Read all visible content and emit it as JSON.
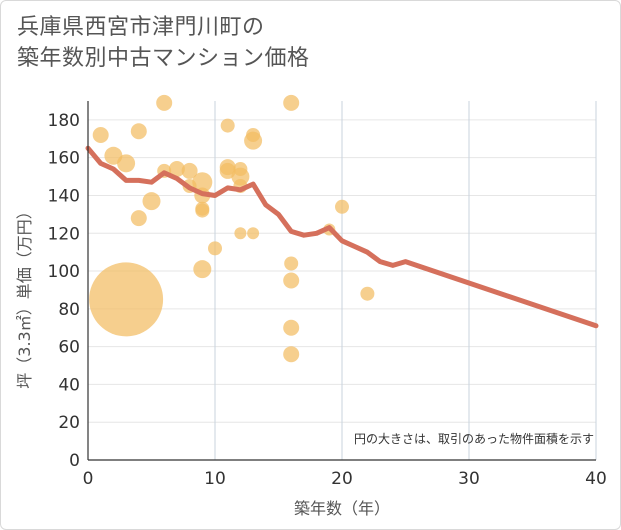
{
  "chart_data": {
    "type": "scatter",
    "title_line1": "兵庫県西宮市津門川町の",
    "title_line2": "築年数別中古マンション価格",
    "xlabel": "築年数（年）",
    "ylabel": "坪（3.3㎡）単価（万円）",
    "note": "円の大きさは、取引のあった物件面積を示す",
    "xlim": [
      0,
      40
    ],
    "ylim": [
      0,
      190
    ],
    "x_ticks": [
      0,
      10,
      20,
      30,
      40
    ],
    "y_ticks": [
      0,
      20,
      40,
      60,
      80,
      100,
      120,
      140,
      160,
      180
    ],
    "grid": true,
    "colors": {
      "bubble": "#f3bd62",
      "line": "#d5705c",
      "grid": "#e6e6e6",
      "vgrid": "#c9d3de"
    },
    "bubbles": [
      {
        "x": 1,
        "y": 172,
        "r": 8
      },
      {
        "x": 2,
        "y": 161,
        "r": 9
      },
      {
        "x": 3,
        "y": 157,
        "r": 9
      },
      {
        "x": 3,
        "y": 85,
        "r": 37
      },
      {
        "x": 4,
        "y": 174,
        "r": 8
      },
      {
        "x": 4,
        "y": 128,
        "r": 8
      },
      {
        "x": 5,
        "y": 137,
        "r": 9
      },
      {
        "x": 6,
        "y": 189,
        "r": 8
      },
      {
        "x": 6,
        "y": 153,
        "r": 7
      },
      {
        "x": 7,
        "y": 154,
        "r": 8
      },
      {
        "x": 8,
        "y": 153,
        "r": 8
      },
      {
        "x": 8,
        "y": 145,
        "r": 7
      },
      {
        "x": 9,
        "y": 147,
        "r": 10
      },
      {
        "x": 9,
        "y": 140,
        "r": 8
      },
      {
        "x": 9,
        "y": 133,
        "r": 7
      },
      {
        "x": 9,
        "y": 132,
        "r": 7
      },
      {
        "x": 9,
        "y": 101,
        "r": 9
      },
      {
        "x": 10,
        "y": 112,
        "r": 7
      },
      {
        "x": 11,
        "y": 177,
        "r": 7
      },
      {
        "x": 11,
        "y": 155,
        "r": 8
      },
      {
        "x": 11,
        "y": 153,
        "r": 8
      },
      {
        "x": 12,
        "y": 154,
        "r": 7
      },
      {
        "x": 12,
        "y": 150,
        "r": 9
      },
      {
        "x": 12,
        "y": 145,
        "r": 7
      },
      {
        "x": 12,
        "y": 120,
        "r": 6
      },
      {
        "x": 13,
        "y": 172,
        "r": 7
      },
      {
        "x": 13,
        "y": 169,
        "r": 9
      },
      {
        "x": 13,
        "y": 120,
        "r": 6
      },
      {
        "x": 16,
        "y": 189,
        "r": 8
      },
      {
        "x": 16,
        "y": 104,
        "r": 7
      },
      {
        "x": 16,
        "y": 95,
        "r": 8
      },
      {
        "x": 16,
        "y": 70,
        "r": 8
      },
      {
        "x": 16,
        "y": 56,
        "r": 8
      },
      {
        "x": 19,
        "y": 122,
        "r": 6
      },
      {
        "x": 20,
        "y": 134,
        "r": 7
      },
      {
        "x": 22,
        "y": 88,
        "r": 7
      }
    ],
    "trend": [
      {
        "x": 0,
        "y": 165
      },
      {
        "x": 1,
        "y": 157
      },
      {
        "x": 2,
        "y": 154
      },
      {
        "x": 3,
        "y": 148
      },
      {
        "x": 4,
        "y": 148
      },
      {
        "x": 5,
        "y": 147
      },
      {
        "x": 6,
        "y": 152
      },
      {
        "x": 7,
        "y": 149
      },
      {
        "x": 8,
        "y": 144
      },
      {
        "x": 9,
        "y": 141
      },
      {
        "x": 10,
        "y": 140
      },
      {
        "x": 11,
        "y": 144
      },
      {
        "x": 12,
        "y": 143
      },
      {
        "x": 13,
        "y": 146
      },
      {
        "x": 14,
        "y": 135
      },
      {
        "x": 15,
        "y": 130
      },
      {
        "x": 16,
        "y": 121
      },
      {
        "x": 17,
        "y": 119
      },
      {
        "x": 18,
        "y": 120
      },
      {
        "x": 19,
        "y": 123
      },
      {
        "x": 20,
        "y": 116
      },
      {
        "x": 21,
        "y": 113
      },
      {
        "x": 22,
        "y": 110
      },
      {
        "x": 23,
        "y": 105
      },
      {
        "x": 24,
        "y": 103
      },
      {
        "x": 25,
        "y": 105
      },
      {
        "x": 40,
        "y": 71
      }
    ]
  }
}
